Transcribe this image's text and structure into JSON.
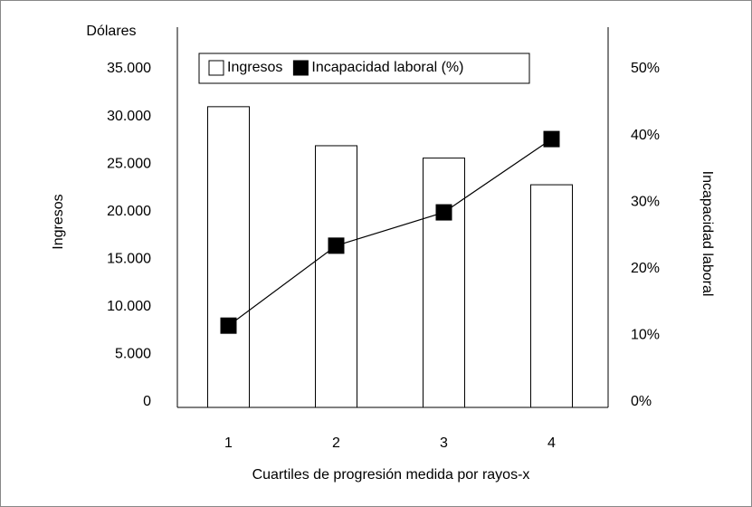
{
  "chart_data": {
    "type": "bar_line",
    "y_unit_label": "Dólares",
    "ylabel": "Ingresos",
    "y2label": "Incapacidad laboral",
    "xlabel": "Cuartiles de progresión medida por rayos-x",
    "categories": [
      "1",
      "2",
      "3",
      "4"
    ],
    "series": [
      {
        "name": "Ingresos",
        "type": "bar",
        "color": "#ffffff",
        "values": [
          31400,
          27300,
          26000,
          23200
        ]
      },
      {
        "name": "Incapacidad laboral (%)",
        "type": "line",
        "axis": "y2",
        "color": "#000000",
        "values": [
          12,
          24,
          29,
          40
        ]
      }
    ],
    "ylim": [
      0,
      35000
    ],
    "yticks": [
      {
        "value": 0,
        "label": "0"
      },
      {
        "value": 5000,
        "label": "5.000"
      },
      {
        "value": 10000,
        "label": "10.000"
      },
      {
        "value": 15000,
        "label": "15.000"
      },
      {
        "value": 20000,
        "label": "20.000"
      },
      {
        "value": 25000,
        "label": "25.000"
      },
      {
        "value": 30000,
        "label": "30.000"
      },
      {
        "value": 35000,
        "label": "35.000"
      }
    ],
    "y2lim": [
      0,
      50
    ],
    "y2ticks": [
      {
        "value": 0,
        "label": "0%"
      },
      {
        "value": 10,
        "label": "10%"
      },
      {
        "value": 20,
        "label": "20%"
      },
      {
        "value": 30,
        "label": "30%"
      },
      {
        "value": 40,
        "label": "40%"
      },
      {
        "value": 50,
        "label": "50%"
      }
    ],
    "legend": "top"
  }
}
